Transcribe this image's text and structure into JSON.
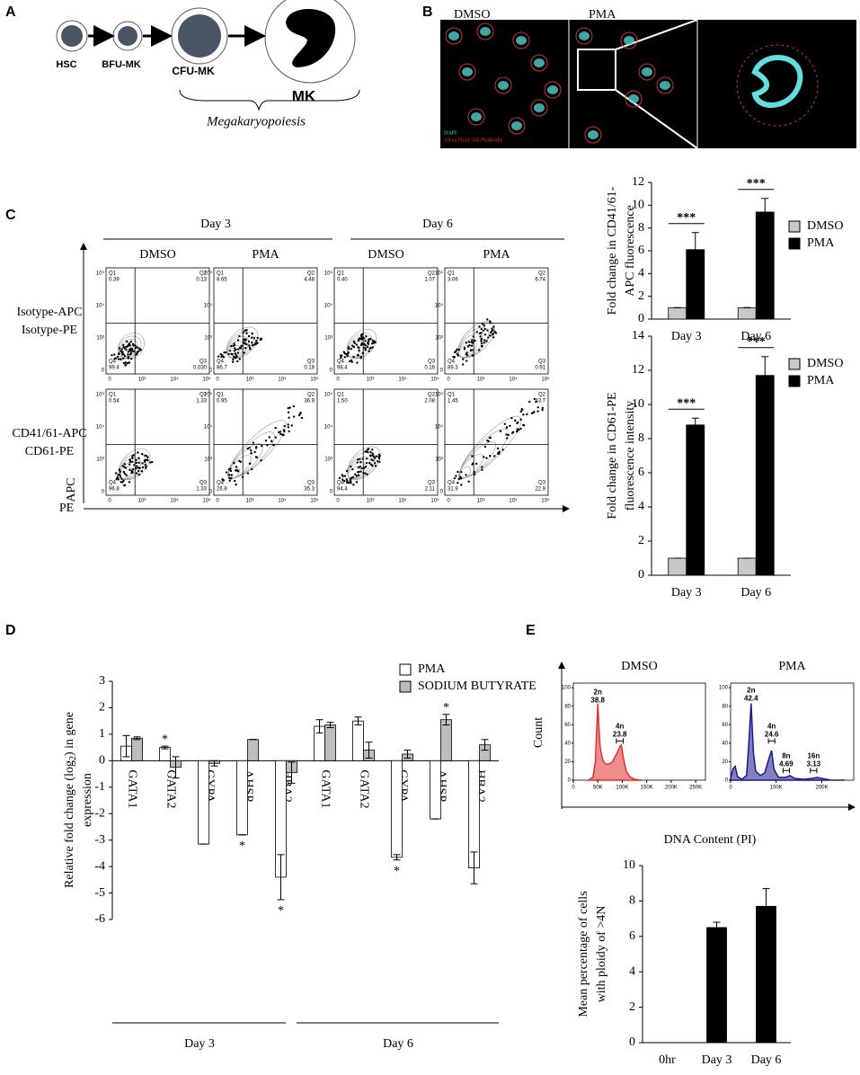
{
  "panel_labels": [
    "A",
    "B",
    "C",
    "D",
    "E"
  ],
  "panel_a": {
    "nodes": [
      "HSC",
      "BFU-MK",
      "CFU-MK",
      "MK"
    ],
    "caption": "Megakaryopoiesis"
  },
  "panel_b": {
    "labels": [
      "DMSO",
      "PMA"
    ],
    "stains": [
      "DAPI",
      "Alexa Fluor 568 Phalloidin"
    ]
  },
  "flow": {
    "days": [
      "Day 3",
      "Day 6"
    ],
    "conditions": [
      "DMSO",
      "PMA"
    ],
    "rows": [
      [
        "Isotype-APC",
        "Isotype-PE"
      ],
      [
        "CD41/61-APC",
        "CD61-PE"
      ]
    ],
    "y_axis": "APC",
    "x_axis": "PE",
    "quadrants": [
      "Q1",
      "Q2",
      "Q3",
      "Q4"
    ],
    "ticks": [
      "0",
      "10³",
      "10⁴",
      "10⁵"
    ],
    "plots": [
      [
        [
          "0.39",
          "0.13",
          "0.030",
          "99.4"
        ],
        [
          "8.65",
          "4.48",
          "0.18",
          "86.7"
        ],
        [
          "0.40",
          "1.07",
          "0.16",
          "98.4"
        ],
        [
          "3.06",
          "6.74",
          "0.91",
          "89.3"
        ]
      ],
      [
        [
          "0.54",
          "1.33",
          "1.33",
          "96.8"
        ],
        [
          "0.95",
          "36.9",
          "35.3",
          "26.8"
        ],
        [
          "1.50",
          "2.08",
          "2.11",
          "94.4"
        ],
        [
          "1.45",
          "43.7",
          "22.9",
          "31.9"
        ]
      ]
    ]
  },
  "histogram_axes": {
    "y_label": "Count",
    "x_label": "DNA Content (PI)"
  },
  "chart_data": [
    {
      "type": "bar",
      "categories": [
        "Day 3",
        "Day 6"
      ],
      "series": [
        {
          "name": "DMSO",
          "color": "#c8c8c8",
          "values": [
            1,
            1
          ],
          "errors": [
            0,
            0
          ]
        },
        {
          "name": "PMA",
          "color": "#000000",
          "values": [
            6.1,
            9.4
          ],
          "errors": [
            1.5,
            1.2
          ]
        }
      ],
      "ylim": [
        0,
        12
      ],
      "yticks": [
        0,
        2,
        4,
        6,
        8,
        10,
        12
      ],
      "ylabel": [
        "Fold change in CD41/61-",
        "APC fluorescence"
      ],
      "significance": [
        "***",
        "***"
      ]
    },
    {
      "type": "bar",
      "categories": [
        "Day 3",
        "Day 6"
      ],
      "series": [
        {
          "name": "DMSO",
          "color": "#c8c8c8",
          "values": [
            1,
            1
          ],
          "errors": [
            0,
            0
          ]
        },
        {
          "name": "PMA",
          "color": "#000000",
          "values": [
            8.8,
            11.7
          ],
          "errors": [
            0.4,
            1.1
          ]
        }
      ],
      "ylim": [
        0,
        14
      ],
      "yticks": [
        0,
        2,
        4,
        6,
        8,
        10,
        12,
        14
      ],
      "ylabel": [
        "Fold change in CD61-PE",
        "fluorescence intensity"
      ],
      "significance": [
        "***",
        "***"
      ]
    },
    {
      "type": "bar",
      "categories": [
        "GATA1",
        "GATA2",
        "GYPA",
        "AHSP",
        "HBA2",
        "GATA1",
        "GATA2",
        "GYPA",
        "AHSP",
        "HBA2"
      ],
      "groups": [
        "Day 3",
        "Day 6"
      ],
      "series": [
        {
          "name": "PMA",
          "color": "#ffffff",
          "values": [
            0.55,
            0.5,
            -3.15,
            -2.8,
            -4.4,
            1.3,
            1.5,
            -3.65,
            -2.2,
            -4.05
          ],
          "errors": [
            0.4,
            0.05,
            0,
            0,
            0.85,
            0.25,
            0.15,
            0.1,
            0,
            0.6
          ],
          "stars": [
            null,
            "*",
            null,
            "*",
            "*",
            null,
            null,
            "*",
            null,
            null
          ]
        },
        {
          "name": "SODIUM BUTYRATE",
          "color": "#bdbdbd",
          "values": [
            0.85,
            -0.25,
            -0.1,
            0.8,
            -0.45,
            1.35,
            0.4,
            0.25,
            1.55,
            0.6
          ],
          "errors": [
            0.05,
            0.4,
            0.1,
            0,
            0.4,
            0.1,
            0.3,
            0.15,
            0.2,
            0.2
          ],
          "stars": [
            null,
            null,
            null,
            null,
            null,
            null,
            null,
            null,
            "*",
            null
          ]
        }
      ],
      "ylim": [
        -6,
        3
      ],
      "yticks": [
        -6,
        -5,
        -4,
        -3,
        -2,
        -1,
        0,
        1,
        2,
        3
      ],
      "ylabel": [
        "Relative fold change (log",
        "2",
        ") in gene",
        "expression"
      ]
    },
    {
      "type": "area",
      "title": "DMSO",
      "color": "#e03030",
      "x": [
        30000,
        40000,
        45000,
        50000,
        52000,
        55000,
        60000,
        65000,
        70000,
        75000,
        80000,
        85000,
        90000,
        95000,
        98000,
        102000,
        108000,
        115000,
        125000,
        140000
      ],
      "values": [
        0,
        3,
        20,
        83,
        60,
        35,
        22,
        18,
        17,
        18,
        20,
        25,
        30,
        36,
        38,
        25,
        10,
        4,
        1,
        0
      ],
      "xlim": [
        0,
        270000
      ],
      "xticks": [
        0,
        {
          "value": 50000,
          "label": "50K"
        },
        {
          "value": 100000,
          "label": "100K"
        },
        {
          "value": 150000,
          "label": "150K"
        },
        {
          "value": 200000,
          "label": "200K"
        },
        {
          "value": 250000,
          "label": "250K"
        }
      ],
      "ylim": [
        0,
        105
      ],
      "yticks": [
        0,
        20,
        40,
        60,
        80,
        100
      ],
      "peaks": [
        {
          "name": "2n",
          "value": "38.8"
        },
        {
          "name": "4n",
          "value": "23.8"
        }
      ]
    },
    {
      "type": "area",
      "title": "PMA",
      "color": "#1a1a8c",
      "x": [
        0,
        5000,
        10000,
        15000,
        25000,
        35000,
        40000,
        45000,
        50000,
        55000,
        65000,
        75000,
        85000,
        90000,
        95000,
        105000,
        120000,
        130000,
        140000,
        160000,
        180000,
        190000,
        200000,
        220000,
        250000
      ],
      "values": [
        2,
        12,
        15,
        4,
        1,
        5,
        40,
        83,
        30,
        10,
        5,
        8,
        25,
        32,
        12,
        3,
        3,
        5,
        2,
        1,
        2,
        3,
        2,
        0,
        0
      ],
      "xlim": [
        0,
        270000
      ],
      "xticks": [
        0,
        {
          "value": 100000,
          "label": "100K"
        },
        {
          "value": 200000,
          "label": "200K"
        }
      ],
      "ylim": [
        0,
        105
      ],
      "yticks": [
        0,
        20,
        40,
        60,
        80,
        100
      ],
      "peaks": [
        {
          "name": "2n",
          "value": "42.4"
        },
        {
          "name": "4n",
          "value": "24.6"
        },
        {
          "name": "8n",
          "value": "4.69"
        },
        {
          "name": "16n",
          "value": "3.13"
        }
      ]
    },
    {
      "type": "bar",
      "categories": [
        "0hr",
        "Day 3",
        "Day 6"
      ],
      "color": "#000000",
      "values": [
        0,
        6.5,
        7.7
      ],
      "errors": [
        0,
        0.3,
        1.0
      ],
      "ylim": [
        0,
        10
      ],
      "yticks": [
        0,
        2,
        4,
        6,
        8,
        10
      ],
      "ylabel": [
        "Mean percentage of cells",
        "with ploidy of >4N"
      ]
    }
  ]
}
